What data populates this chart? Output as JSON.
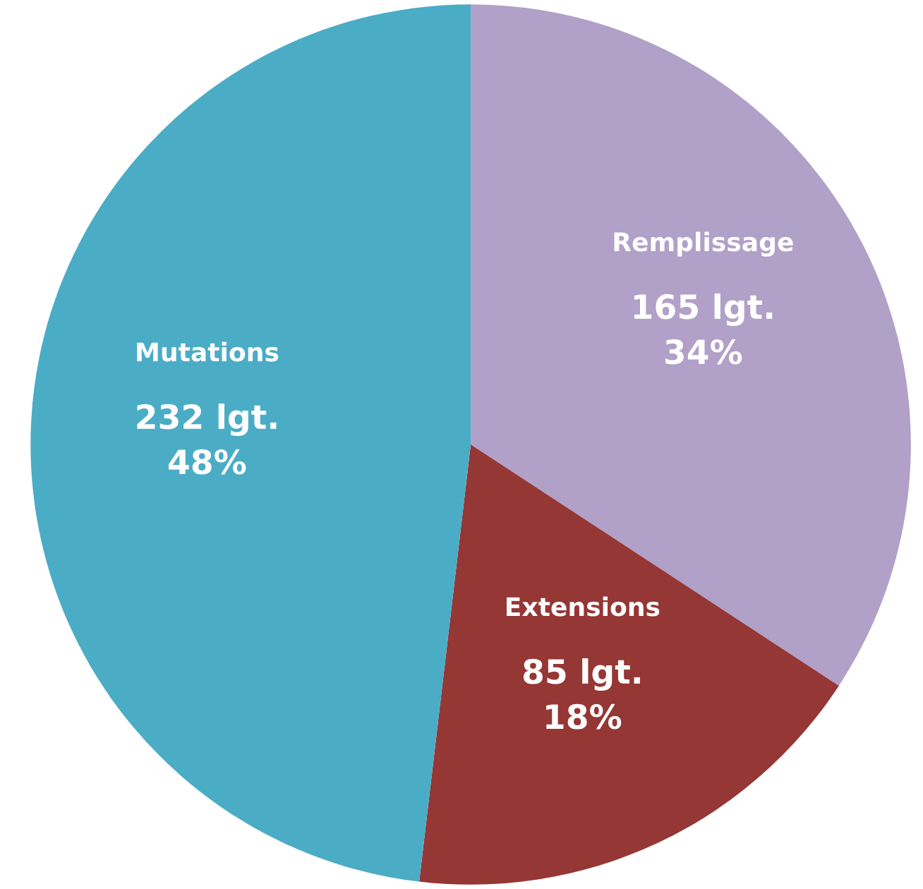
{
  "chart_data": {
    "type": "pie",
    "categories": [
      "Remplissage",
      "Extensions",
      "Mutations"
    ],
    "values": [
      165,
      85,
      232
    ],
    "value_labels": [
      "165 lgt.\n34%",
      "85 lgt.\n18%",
      "232 lgt.\n48%"
    ],
    "colors": [
      "#b1a0c7",
      "#953735",
      "#4bacc6"
    ]
  }
}
